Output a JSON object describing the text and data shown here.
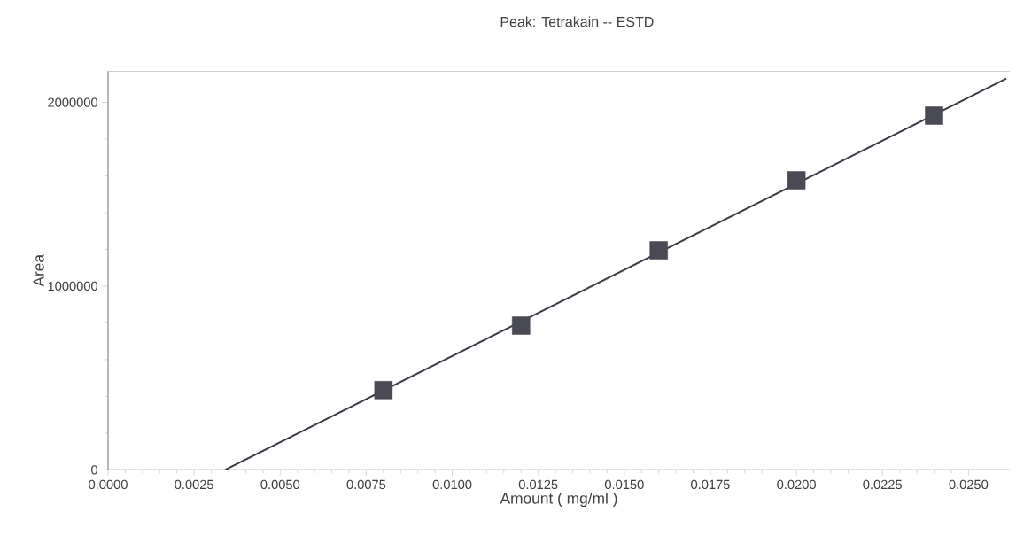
{
  "chart_data": {
    "type": "scatter",
    "title": "Peak: Tetrakain -- ESTD",
    "xlabel": "Amount ( mg/ml )",
    "ylabel": "Area",
    "series": [
      {
        "color": "#4a4a55",
        "marker": "square",
        "x": [
          0.008,
          0.012,
          0.016,
          0.02,
          0.024
        ],
        "values": [
          434000,
          785000,
          1195000,
          1576000,
          1928000
        ]
      },
      {
        "type": "line",
        "color": "#3a3a45",
        "marker": "none",
        "x": [
          0.0034,
          0.0261
        ],
        "values": [
          0,
          2130000
        ]
      }
    ],
    "xlim": [
      0,
      0.0262
    ],
    "ylim": [
      0,
      2170000
    ],
    "xticks": [
      {
        "value": 0,
        "label": "0.0000"
      },
      {
        "value": 0.0025,
        "label": "0.0025"
      },
      {
        "value": 0.005,
        "label": "0.0050"
      },
      {
        "value": 0.0075,
        "label": "0.0075"
      },
      {
        "value": 0.01,
        "label": "0.0100"
      },
      {
        "value": 0.0125,
        "label": "0.0125"
      },
      {
        "value": 0.015,
        "label": "0.0150"
      },
      {
        "value": 0.0175,
        "label": "0.0175"
      },
      {
        "value": 0.02,
        "label": "0.0200"
      },
      {
        "value": 0.0225,
        "label": "0.0225"
      },
      {
        "value": 0.025,
        "label": "0.0250"
      }
    ],
    "yticks": [
      0,
      1000000,
      2000000
    ],
    "grid": false
  }
}
